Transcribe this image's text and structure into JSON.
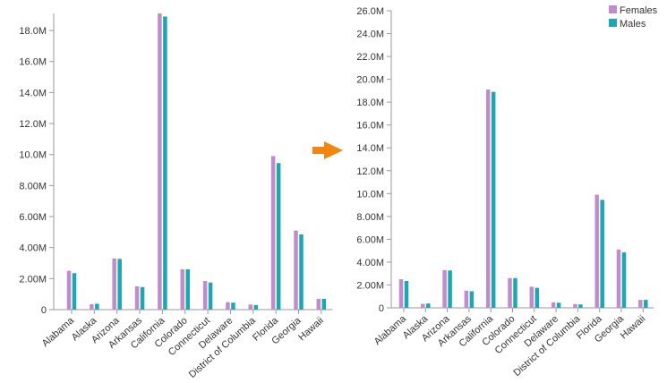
{
  "colors": {
    "Females": "#c08ccc",
    "Males": "#1ba7b4",
    "axis": "#9a9a9a",
    "arrow": "#f2850f"
  },
  "transition_arrow_icon": "arrow-right-icon",
  "chart_data": [
    {
      "type": "bar",
      "title": "",
      "xlabel": "",
      "ylabel": "",
      "categories": [
        "Alabama",
        "Alaska",
        "Arizona",
        "Arkansas",
        "California",
        "Colorado",
        "Connecticut",
        "Delaware",
        "District of Columbia",
        "Florida",
        "Georgia",
        "Hawaii"
      ],
      "series": [
        {
          "name": "Females",
          "values": [
            2500000,
            350000,
            3300000,
            1500000,
            19100000,
            2600000,
            1850000,
            480000,
            330000,
            9900000,
            5100000,
            700000
          ]
        },
        {
          "name": "Males",
          "values": [
            2350000,
            380000,
            3270000,
            1450000,
            18900000,
            2600000,
            1750000,
            450000,
            300000,
            9450000,
            4850000,
            700000
          ]
        }
      ],
      "ylim": [
        0,
        19100000
      ],
      "y_ticks": [
        "0",
        "2.00M",
        "4.00M",
        "6.00M",
        "8.00M",
        "10.0M",
        "12.0M",
        "14.0M",
        "16.0M",
        "18.0M"
      ],
      "y_tick_values": [
        0,
        2000000,
        4000000,
        6000000,
        8000000,
        10000000,
        12000000,
        14000000,
        16000000,
        18000000
      ],
      "legend": "none",
      "grid": false
    },
    {
      "type": "bar",
      "title": "",
      "xlabel": "",
      "ylabel": "",
      "categories": [
        "Alabama",
        "Alaska",
        "Arizona",
        "Arkansas",
        "California",
        "Colorado",
        "Connecticut",
        "Delaware",
        "District of Columbia",
        "Florida",
        "Georgia",
        "Hawaii"
      ],
      "series": [
        {
          "name": "Females",
          "values": [
            2500000,
            350000,
            3300000,
            1500000,
            19100000,
            2600000,
            1850000,
            480000,
            330000,
            9900000,
            5100000,
            700000
          ]
        },
        {
          "name": "Males",
          "values": [
            2350000,
            380000,
            3270000,
            1450000,
            18900000,
            2600000,
            1750000,
            450000,
            300000,
            9450000,
            4850000,
            700000
          ]
        }
      ],
      "ylim": [
        0,
        26000000
      ],
      "y_ticks": [
        "0",
        "2.00M",
        "4.00M",
        "6.00M",
        "8.00M",
        "10.0M",
        "12.0M",
        "14.0M",
        "16.0M",
        "18.0M",
        "20.0M",
        "22.0M",
        "24.0M",
        "26.0M"
      ],
      "y_tick_values": [
        0,
        2000000,
        4000000,
        6000000,
        8000000,
        10000000,
        12000000,
        14000000,
        16000000,
        18000000,
        20000000,
        22000000,
        24000000,
        26000000
      ],
      "legend": "top-right",
      "grid": false
    }
  ]
}
